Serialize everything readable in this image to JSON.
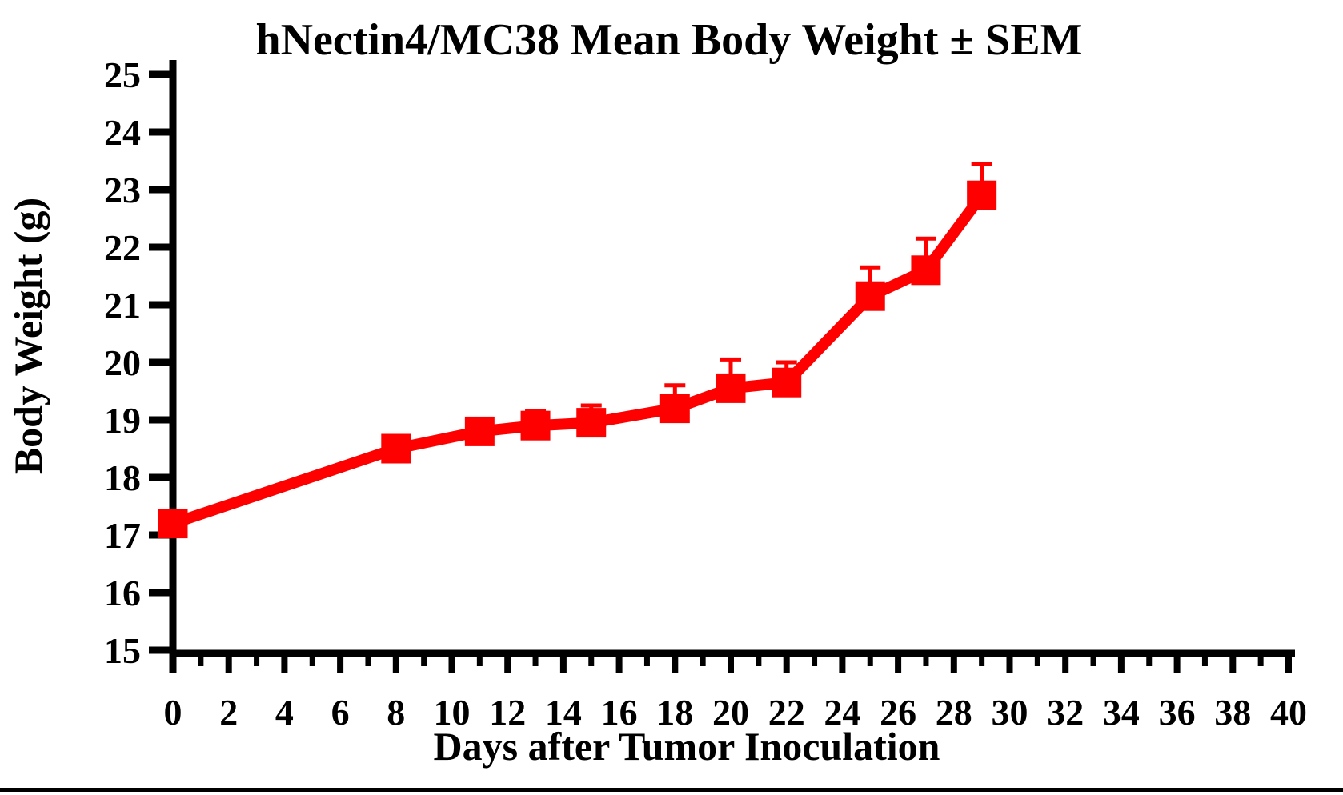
{
  "chart_title": "hNectin4/MC38 Mean Body Weight ± SEM",
  "colors": {
    "series": "#FF0000",
    "axis": "#000000",
    "background": "#FFFFFF"
  },
  "chart_data": {
    "type": "line",
    "title": "hNectin4/MC38 Mean Body Weight ± SEM",
    "xlabel": "Days after Tumor Inoculation",
    "ylabel": "Body Weight (g)",
    "xlim": [
      0,
      40
    ],
    "ylim": [
      15,
      25
    ],
    "grid": false,
    "legend": false,
    "marker": "filled-square",
    "error_bars": "upper-SEM",
    "x_tick_labels": [
      0,
      2,
      4,
      6,
      8,
      10,
      12,
      14,
      16,
      18,
      20,
      22,
      24,
      26,
      28,
      30,
      32,
      34,
      36,
      38,
      40
    ],
    "x_minor_ticks": [
      1,
      3,
      5,
      7,
      9,
      11,
      13,
      15,
      17,
      19,
      21,
      23,
      25,
      27,
      29,
      31,
      33,
      35,
      37,
      39
    ],
    "y_tick_labels": [
      15,
      16,
      17,
      18,
      19,
      20,
      21,
      22,
      23,
      24,
      25
    ],
    "series": [
      {
        "name": "hNectin4/MC38",
        "color": "#FF0000",
        "x": [
          0,
          8,
          11,
          13,
          15,
          18,
          20,
          22,
          25,
          27,
          29
        ],
        "y": [
          17.2,
          18.5,
          18.8,
          18.9,
          18.95,
          19.2,
          19.55,
          19.65,
          21.15,
          21.6,
          22.9
        ],
        "sem_upper": [
          0.1,
          0.1,
          0.1,
          0.25,
          0.3,
          0.4,
          0.5,
          0.35,
          0.5,
          0.55,
          0.55
        ]
      }
    ]
  }
}
